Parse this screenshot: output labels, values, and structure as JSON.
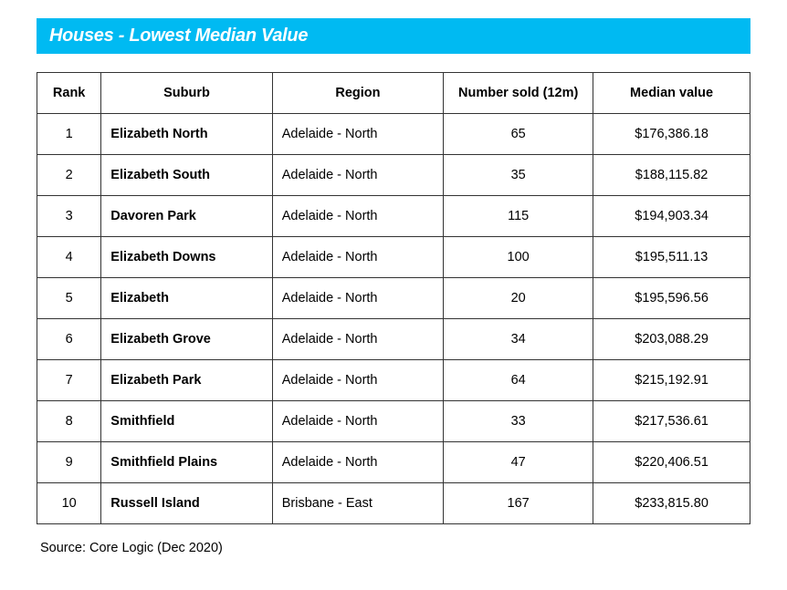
{
  "header": {
    "title": "Houses - Lowest Median Value",
    "background_color": "#00baf2",
    "text_color": "#ffffff"
  },
  "table": {
    "border_color": "#333333",
    "columns": [
      {
        "label": "Rank",
        "key": "rank"
      },
      {
        "label": "Suburb",
        "key": "suburb"
      },
      {
        "label": "Region",
        "key": "region"
      },
      {
        "label": "Number sold (12m)",
        "key": "sold"
      },
      {
        "label": "Median value",
        "key": "median"
      }
    ],
    "rows": [
      {
        "rank": "1",
        "suburb": "Elizabeth North",
        "region": "Adelaide - North",
        "sold": "65",
        "median": "$176,386.18"
      },
      {
        "rank": "2",
        "suburb": "Elizabeth South",
        "region": "Adelaide - North",
        "sold": "35",
        "median": "$188,115.82"
      },
      {
        "rank": "3",
        "suburb": "Davoren Park",
        "region": "Adelaide - North",
        "sold": "115",
        "median": "$194,903.34"
      },
      {
        "rank": "4",
        "suburb": "Elizabeth Downs",
        "region": "Adelaide - North",
        "sold": "100",
        "median": "$195,511.13"
      },
      {
        "rank": "5",
        "suburb": "Elizabeth",
        "region": "Adelaide - North",
        "sold": "20",
        "median": "$195,596.56"
      },
      {
        "rank": "6",
        "suburb": "Elizabeth Grove",
        "region": "Adelaide - North",
        "sold": "34",
        "median": "$203,088.29"
      },
      {
        "rank": "7",
        "suburb": "Elizabeth Park",
        "region": "Adelaide - North",
        "sold": "64",
        "median": "$215,192.91"
      },
      {
        "rank": "8",
        "suburb": "Smithfield",
        "region": "Adelaide - North",
        "sold": "33",
        "median": "$217,536.61"
      },
      {
        "rank": "9",
        "suburb": "Smithfield Plains",
        "region": "Adelaide - North",
        "sold": "47",
        "median": "$220,406.51"
      },
      {
        "rank": "10",
        "suburb": "Russell Island",
        "region": "Brisbane - East",
        "sold": "167",
        "median": "$233,815.80"
      }
    ]
  },
  "source": "Source: Core Logic (Dec 2020)"
}
